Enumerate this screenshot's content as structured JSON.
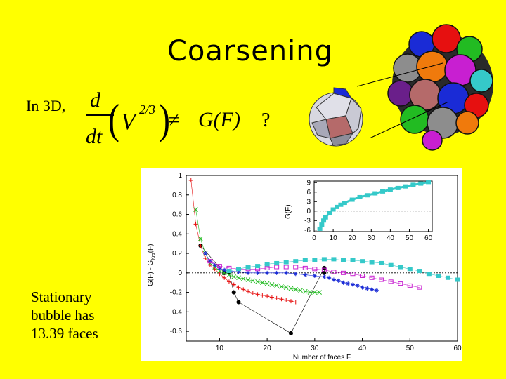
{
  "slide": {
    "title": "Coarsening",
    "lead": "In 3D,",
    "note_lines": [
      "Stationary",
      "bubble has",
      "13.39 faces"
    ]
  },
  "equation": {
    "d": "d",
    "dt": "dt",
    "v": "V",
    "exp": "2/3",
    "neq": "≠",
    "rhs": "G(F)",
    "q": "?"
  },
  "illustration": {
    "colors": [
      "#1a2bd6",
      "#e61010",
      "#22bb22",
      "#8d8d8d",
      "#f07a0c",
      "#c81fd1",
      "#35c9c9",
      "#6a1f8a",
      "#b56a6a"
    ]
  },
  "chart_data": [
    {
      "type": "scatter",
      "xlabel": "Number of faces F",
      "ylabel": "G(F) - G_Krs(F)",
      "ylabel_main": "G(F) - G",
      "ylabel_sub": "Krs",
      "ylabel_end": "(F)",
      "xlim": [
        3,
        60
      ],
      "ylim": [
        -0.7,
        1.0
      ],
      "x_ticks": [
        "10",
        "20",
        "30",
        "40",
        "50",
        "60"
      ],
      "x_tick_values": [
        10,
        20,
        30,
        40,
        50,
        60
      ],
      "y_ticks": [
        "1",
        "0.8",
        "0.6",
        "0.4",
        "0.2",
        "0",
        "-0.2",
        "-0.4",
        "-0.6"
      ],
      "y_tick_values": [
        1,
        0.8,
        0.6,
        0.4,
        0.2,
        0,
        -0.2,
        -0.4,
        -0.6
      ],
      "zero_line": true,
      "series": [
        {
          "color": "#000000",
          "marker": "circle",
          "x": [
            6,
            11,
            12,
            13,
            14,
            25,
            32,
            32
          ],
          "y": [
            0.28,
            0.0,
            0.0,
            -0.2,
            -0.3,
            -0.62,
            0.05,
            0.0
          ]
        },
        {
          "color": "#e61010",
          "marker": "plus",
          "x": [
            4,
            5,
            6,
            7,
            8,
            9,
            10,
            11,
            12,
            13,
            14,
            15,
            16,
            17,
            18,
            19,
            20,
            21,
            22,
            23,
            24,
            25,
            26
          ],
          "y": [
            0.95,
            0.5,
            0.28,
            0.15,
            0.08,
            0.04,
            -0.01,
            -0.05,
            -0.09,
            -0.12,
            -0.15,
            -0.17,
            -0.19,
            -0.21,
            -0.22,
            -0.23,
            -0.24,
            -0.25,
            -0.26,
            -0.27,
            -0.28,
            -0.29,
            -0.3
          ]
        },
        {
          "color": "#22bb22",
          "marker": "cross",
          "x": [
            5,
            6,
            7,
            8,
            9,
            10,
            11,
            12,
            13,
            14,
            15,
            16,
            17,
            18,
            19,
            20,
            21,
            22,
            23,
            24,
            25,
            26,
            27,
            28,
            29,
            30,
            31
          ],
          "y": [
            0.65,
            0.35,
            0.2,
            0.1,
            0.06,
            0.02,
            0.0,
            -0.02,
            -0.04,
            -0.05,
            -0.06,
            -0.07,
            -0.08,
            -0.09,
            -0.1,
            -0.11,
            -0.12,
            -0.13,
            -0.14,
            -0.15,
            -0.16,
            -0.17,
            -0.18,
            -0.19,
            -0.2,
            -0.2,
            -0.2
          ]
        },
        {
          "color": "#1a2bd6",
          "marker": "star",
          "x": [
            7,
            8,
            9,
            10,
            11,
            12,
            14,
            16,
            18,
            20,
            22,
            24,
            26,
            28,
            30,
            32,
            33,
            34,
            35,
            36,
            37,
            38,
            39,
            40,
            41,
            42,
            43
          ],
          "y": [
            0.2,
            0.12,
            0.08,
            0.05,
            0.03,
            0.02,
            0.01,
            0.0,
            0.0,
            0.0,
            0.0,
            0.0,
            -0.01,
            -0.02,
            -0.03,
            -0.04,
            -0.05,
            -0.07,
            -0.08,
            -0.1,
            -0.11,
            -0.12,
            -0.13,
            -0.15,
            -0.16,
            -0.17,
            -0.18
          ]
        },
        {
          "color": "#c81fd1",
          "marker": "square-open",
          "x": [
            8,
            10,
            12,
            14,
            16,
            18,
            20,
            22,
            24,
            26,
            28,
            30,
            32,
            34,
            36,
            38,
            40,
            42,
            44,
            46,
            48,
            50,
            52
          ],
          "y": [
            0.12,
            0.07,
            0.05,
            0.04,
            0.04,
            0.04,
            0.05,
            0.06,
            0.06,
            0.06,
            0.05,
            0.04,
            0.03,
            0.01,
            0.0,
            -0.01,
            -0.03,
            -0.05,
            -0.07,
            -0.09,
            -0.11,
            -0.13,
            -0.15
          ]
        },
        {
          "color": "#35c9c9",
          "marker": "square",
          "x": [
            12,
            14,
            16,
            18,
            20,
            22,
            24,
            26,
            28,
            30,
            32,
            34,
            36,
            38,
            40,
            42,
            44,
            46,
            48,
            50,
            52,
            54,
            56,
            58,
            60
          ],
          "y": [
            0.02,
            0.04,
            0.06,
            0.07,
            0.09,
            0.1,
            0.11,
            0.12,
            0.13,
            0.13,
            0.14,
            0.14,
            0.13,
            0.13,
            0.12,
            0.11,
            0.1,
            0.08,
            0.06,
            0.04,
            0.02,
            -0.01,
            -0.03,
            -0.05,
            -0.07
          ]
        }
      ]
    },
    {
      "type": "line",
      "ylabel": "G(F)",
      "xlim": [
        0,
        62
      ],
      "ylim": [
        -6.5,
        9.5
      ],
      "x_ticks": [
        "0",
        "10",
        "20",
        "30",
        "40",
        "50",
        "60"
      ],
      "x_tick_values": [
        0,
        10,
        20,
        30,
        40,
        50,
        60
      ],
      "y_ticks": [
        "9",
        "6",
        "3",
        "0",
        "-3",
        "-6"
      ],
      "y_tick_values": [
        9,
        6,
        3,
        0,
        -3,
        -6
      ],
      "zero_line": true,
      "series": [
        {
          "color": "#35c9c9",
          "marker": "square",
          "x": [
            3,
            4,
            5,
            6,
            8,
            10,
            12,
            14,
            16,
            20,
            24,
            28,
            32,
            36,
            40,
            44,
            48,
            52,
            56,
            60
          ],
          "y": [
            -5.6,
            -4.3,
            -3.0,
            -2.0,
            -0.6,
            0.5,
            1.3,
            2.0,
            2.6,
            3.6,
            4.4,
            5.0,
            5.6,
            6.2,
            6.8,
            7.3,
            7.8,
            8.3,
            8.7,
            9.2
          ]
        }
      ]
    }
  ]
}
